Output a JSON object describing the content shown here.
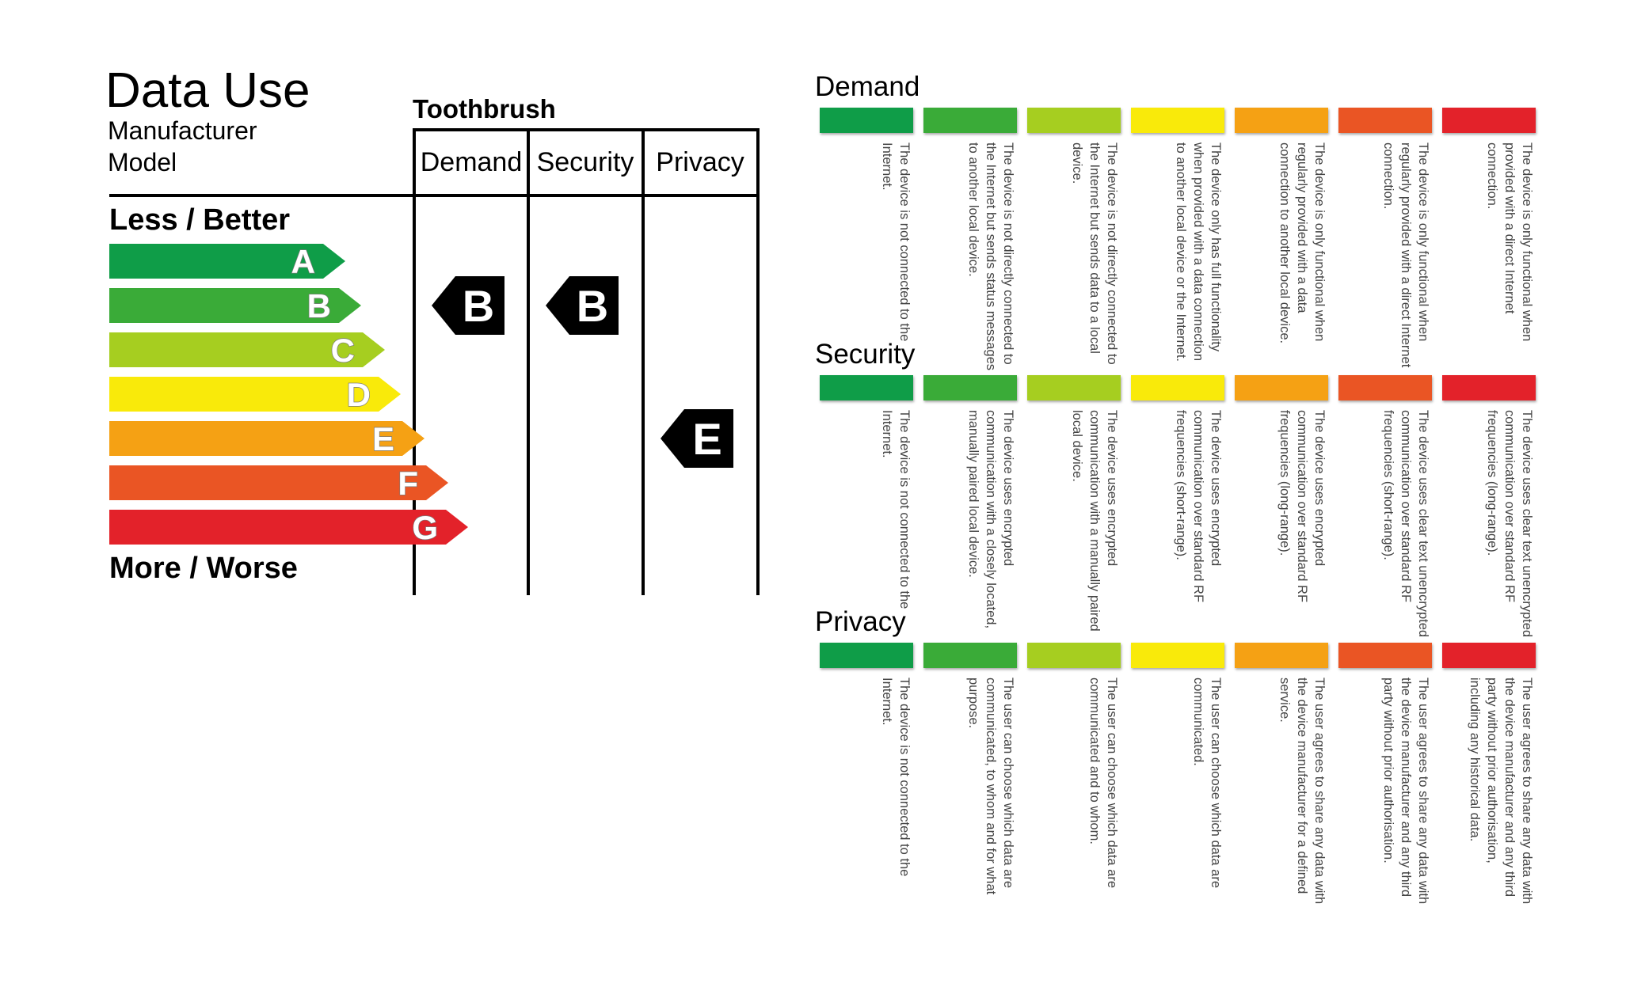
{
  "label": {
    "title": "Data Use",
    "manufacturer": "Manufacturer",
    "model": "Model",
    "product": "Toothbrush",
    "columns": [
      "Demand",
      "Security",
      "Privacy"
    ],
    "scale_top": "Less / Better",
    "scale_bottom": "More / Worse",
    "bands": [
      {
        "letter": "A",
        "color": "#0f9d48"
      },
      {
        "letter": "B",
        "color": "#3aab38"
      },
      {
        "letter": "C",
        "color": "#a6ce20"
      },
      {
        "letter": "D",
        "color": "#f9ea0a"
      },
      {
        "letter": "E",
        "color": "#f5a114"
      },
      {
        "letter": "F",
        "color": "#ea5524"
      },
      {
        "letter": "G",
        "color": "#e3222a"
      }
    ],
    "ratings": {
      "Demand": "B",
      "Security": "B",
      "Privacy": "E"
    }
  },
  "legend": {
    "sections": [
      {
        "title": "Demand",
        "items": [
          "The device is not connected to the Internet.",
          "The device is not directly connected to the Internet but sends status messages to another local device.",
          "The device is not directly connected to the Internet but sends data to a local device.",
          "The device only has full functionality when provided with a data connection to another local device or the Internet.",
          "The device is only functional when regularly provided with a data connection to another local device.",
          "The device is only functional when regularly provided with a direct Internet connection.",
          "The device is only functional when provided with a direct Internet connection."
        ]
      },
      {
        "title": "Security",
        "items": [
          "The device is not connected to the Internet.",
          "The device uses encrypted communication with a closely located, manually paired local device.",
          "The device uses encrypted communication with a manually paired local device.",
          "The device uses encrypted communication over standard RF frequencies (short-range).",
          "The device uses encrypted communication over standard RF frequencies (long-range).",
          "The device uses clear text unencrypted communication over standard RF frequencies (short-range).",
          "The device uses clear text unencrypted communication over standard RF frequencies (long-range)."
        ]
      },
      {
        "title": "Privacy",
        "items": [
          "The device is not connected to the Internet.",
          "The user can choose which data are communicated, to whom and for what purpose.",
          "The user can choose which data are communicated and to whom.",
          "The user can choose which data are communicated.",
          "The user agrees to share any data with the device manufacturer for a defined service.",
          "The user agrees to share any data with the device manufacturer and any third party without prior authorisation.",
          "The user agrees to share any data with the device manufacturer and any third party without prior authorisation, including any historical data."
        ]
      }
    ]
  }
}
